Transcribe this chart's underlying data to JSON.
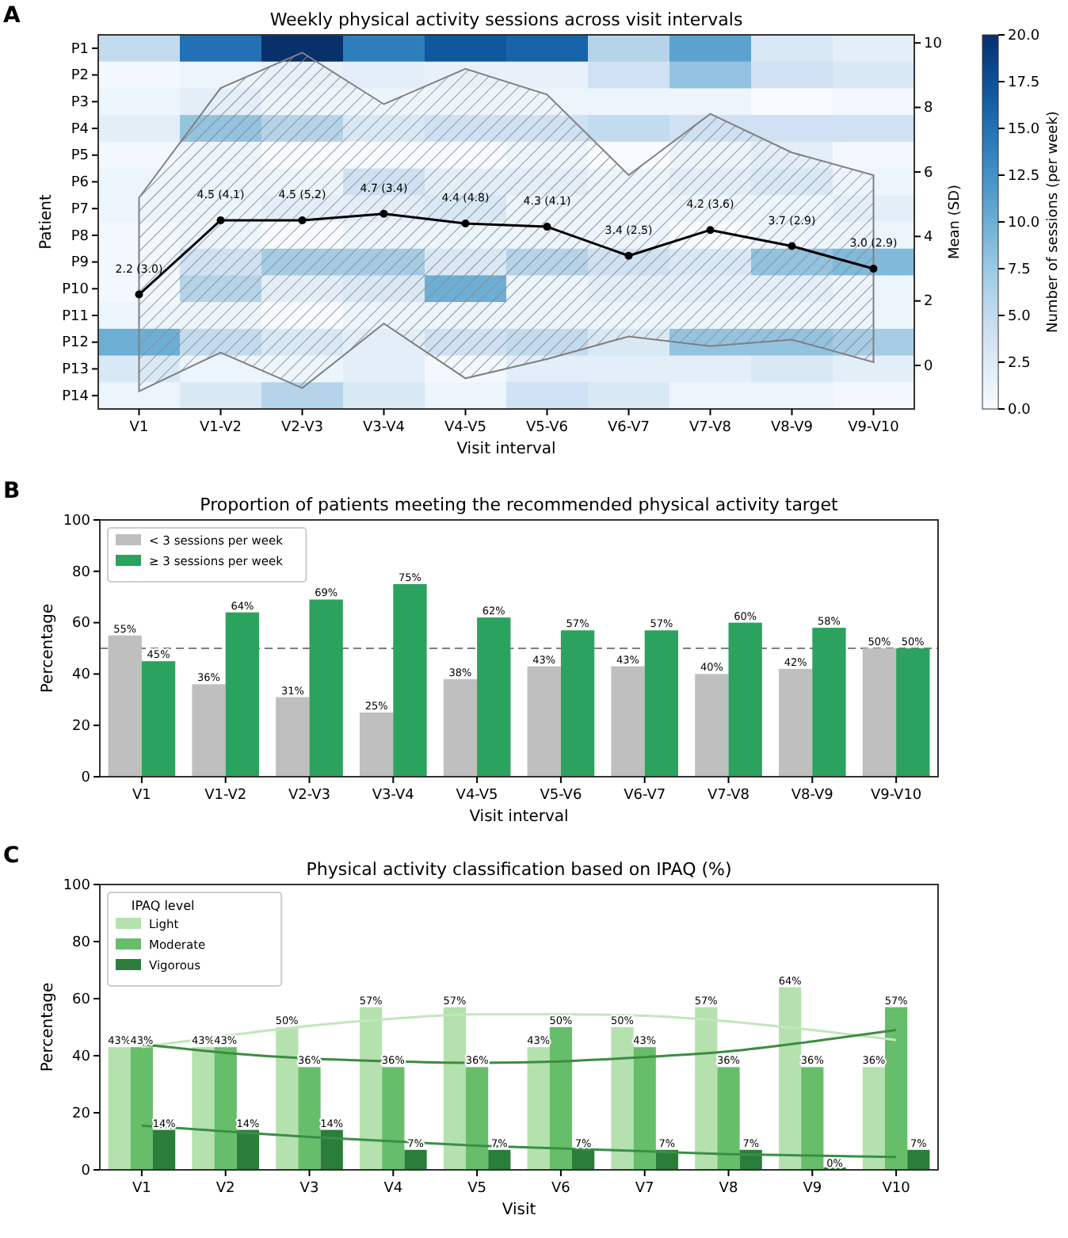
{
  "chart_data": [
    {
      "type": "heatmap",
      "title": "Weekly physical activity sessions across visit intervals",
      "annotations": [
        "A"
      ],
      "xlabel": "Visit interval",
      "ylabel": "Patient",
      "y2label": "Mean (SD)",
      "clabel": "Number of sessions (per week)",
      "categories": [
        "V1",
        "V1-V2",
        "V2-V3",
        "V3-V4",
        "V4-V5",
        "V5-V6",
        "V6-V7",
        "V7-V8",
        "V8-V9",
        "V9-V10"
      ],
      "y_categories": [
        "P1",
        "P2",
        "P3",
        "P4",
        "P5",
        "P6",
        "P7",
        "P8",
        "P9",
        "P10",
        "P11",
        "P12",
        "P13",
        "P14"
      ],
      "cells": [
        [
          5,
          15,
          20,
          14,
          17,
          16,
          6,
          11,
          3,
          2
        ],
        [
          0.5,
          1,
          1.5,
          2,
          1.5,
          1.5,
          4,
          8,
          4,
          3
        ],
        [
          1,
          2,
          1,
          1,
          1,
          1,
          1,
          1,
          0,
          0.5
        ],
        [
          2,
          8,
          6,
          3,
          4,
          4,
          5,
          4,
          4,
          4
        ],
        [
          0.5,
          1,
          0,
          0,
          0,
          1,
          0,
          1,
          2,
          0.5
        ],
        [
          1,
          1,
          1,
          4,
          2,
          2,
          1,
          2,
          3,
          1
        ],
        [
          1,
          1,
          2,
          2,
          3,
          1,
          1,
          1,
          1,
          2
        ],
        [
          0.5,
          1,
          0,
          1,
          1,
          1,
          1,
          0,
          1,
          1
        ],
        [
          0.5,
          4,
          7,
          7,
          3,
          6,
          4,
          3,
          8,
          9
        ],
        [
          0.5,
          6,
          2,
          3,
          10,
          1,
          2,
          2,
          2,
          1
        ],
        [
          1,
          1,
          0,
          1,
          1,
          1,
          1,
          1,
          1,
          1
        ],
        [
          10,
          5,
          3,
          2,
          4,
          5,
          3,
          8,
          8,
          7
        ],
        [
          3,
          1,
          1,
          2,
          0.5,
          2,
          2,
          2,
          3,
          2
        ],
        [
          1,
          3,
          6,
          3,
          1,
          4,
          3,
          1,
          1,
          0.5
        ]
      ],
      "clim": [
        0,
        20
      ],
      "cticks": [
        {
          "value": 0,
          "label": "0.0"
        },
        {
          "value": 2.5,
          "label": "2.5"
        },
        {
          "value": 5,
          "label": "5.0"
        },
        {
          "value": 7.5,
          "label": "7.5"
        },
        {
          "value": 10,
          "label": "10.0"
        },
        {
          "value": 12.5,
          "label": "12.5"
        },
        {
          "value": 15,
          "label": "15.0"
        },
        {
          "value": 17.5,
          "label": "17.5"
        },
        {
          "value": 20,
          "label": "20.0"
        }
      ],
      "y2lim": [
        -1.35,
        10.25
      ],
      "y2ticks": [
        0,
        2,
        4,
        6,
        8,
        10
      ],
      "series": [
        {
          "type": "line",
          "axis": "y2",
          "color": "#000000",
          "marker": "circle",
          "values": [
            2.2,
            4.5,
            4.5,
            4.7,
            4.4,
            4.3,
            3.4,
            4.2,
            3.7,
            3.0
          ],
          "lower": [
            -0.8,
            0.4,
            -0.7,
            1.3,
            -0.4,
            0.2,
            0.9,
            0.6,
            0.8,
            0.1
          ],
          "upper": [
            5.2,
            8.6,
            9.7,
            8.1,
            9.2,
            8.4,
            5.9,
            7.8,
            6.6,
            5.9
          ],
          "value_labels": [
            "2.2 (3.0)",
            "4.5 (4.1)",
            "4.5 (5.2)",
            "4.7 (3.4)",
            "4.4 (4.8)",
            "4.3 (4.1)",
            "3.4 (2.5)",
            "4.2 (3.6)",
            "3.7 (2.9)",
            "3.0 (2.9)"
          ]
        }
      ]
    },
    {
      "type": "bar",
      "title": "Proportion of patients meeting the recommended physical activity target",
      "annotations": [
        "B"
      ],
      "xlabel": "Visit interval",
      "ylabel": "Percentage",
      "categories": [
        "V1",
        "V1-V2",
        "V2-V3",
        "V3-V4",
        "V4-V5",
        "V5-V6",
        "V6-V7",
        "V7-V8",
        "V8-V9",
        "V9-V10"
      ],
      "ylim": [
        0,
        100
      ],
      "yticks": [
        0,
        20,
        40,
        60,
        80,
        100
      ],
      "legend": "top left",
      "ref_lines": [
        {
          "axis": "y",
          "value": 50,
          "color": "#555555",
          "line_style": "dashed"
        }
      ],
      "series": [
        {
          "name": "< 3 sessions per week",
          "color": "#bfbfbf",
          "values": [
            55,
            36,
            31,
            25,
            38,
            43,
            43,
            40,
            42,
            50
          ],
          "value_labels": [
            "55%",
            "36%",
            "31%",
            "25%",
            "38%",
            "43%",
            "43%",
            "40%",
            "42%",
            "50%"
          ]
        },
        {
          "name": "≥ 3 sessions per week",
          "color": "#2ca25f",
          "values": [
            45,
            64,
            69,
            75,
            62,
            57,
            57,
            60,
            58,
            50
          ],
          "value_labels": [
            "45%",
            "64%",
            "69%",
            "75%",
            "62%",
            "57%",
            "57%",
            "60%",
            "58%",
            "50%"
          ]
        }
      ]
    },
    {
      "type": "bar",
      "title": "Physical activity classification based on IPAQ (%)",
      "annotations": [
        "C"
      ],
      "xlabel": "Visit",
      "ylabel": "Percentage",
      "legend_title": "IPAQ level",
      "categories": [
        "V1",
        "V2",
        "V3",
        "V4",
        "V5",
        "V6",
        "V7",
        "V8",
        "V9",
        "V10"
      ],
      "ylim": [
        0,
        100
      ],
      "yticks": [
        0,
        20,
        40,
        60,
        80,
        100
      ],
      "legend": "top left",
      "series": [
        {
          "name": "Light",
          "color": "#b5e1ae",
          "values": [
            43,
            43,
            50,
            57,
            57,
            43,
            50,
            57,
            64,
            36
          ],
          "value_labels": [
            "43%",
            "43%",
            "50%",
            "57%",
            "57%",
            "43%",
            "50%",
            "57%",
            "64%",
            "36%"
          ]
        },
        {
          "name": "Moderate",
          "color": "#66bd6a",
          "values": [
            43,
            43,
            36,
            36,
            36,
            50,
            43,
            36,
            36,
            57
          ],
          "value_labels": [
            "43%",
            "43%",
            "36%",
            "36%",
            "36%",
            "50%",
            "43%",
            "36%",
            "36%",
            "57%"
          ]
        },
        {
          "name": "Vigorous",
          "color": "#2b7d3a",
          "values": [
            14,
            14,
            14,
            7,
            7,
            7,
            7,
            7,
            0,
            7
          ],
          "value_labels": [
            "14%",
            "14%",
            "14%",
            "7%",
            "7%",
            "7%",
            "7%",
            "7%",
            "0%",
            "7%"
          ]
        },
        {
          "type": "line",
          "color": "#c2e6bc",
          "values": [
            43,
            47,
            50.5,
            53,
            54.5,
            54.5,
            54,
            52,
            49,
            45.5
          ]
        },
        {
          "type": "line",
          "color": "#3c8c42",
          "values": [
            44,
            41,
            39,
            38,
            37.5,
            38,
            39.5,
            41.5,
            45,
            49
          ]
        },
        {
          "type": "line",
          "color": "#3a8f46",
          "values": [
            15.5,
            13.5,
            11.5,
            10,
            8.5,
            7.5,
            6.5,
            5.5,
            5,
            4.5
          ]
        }
      ]
    }
  ]
}
